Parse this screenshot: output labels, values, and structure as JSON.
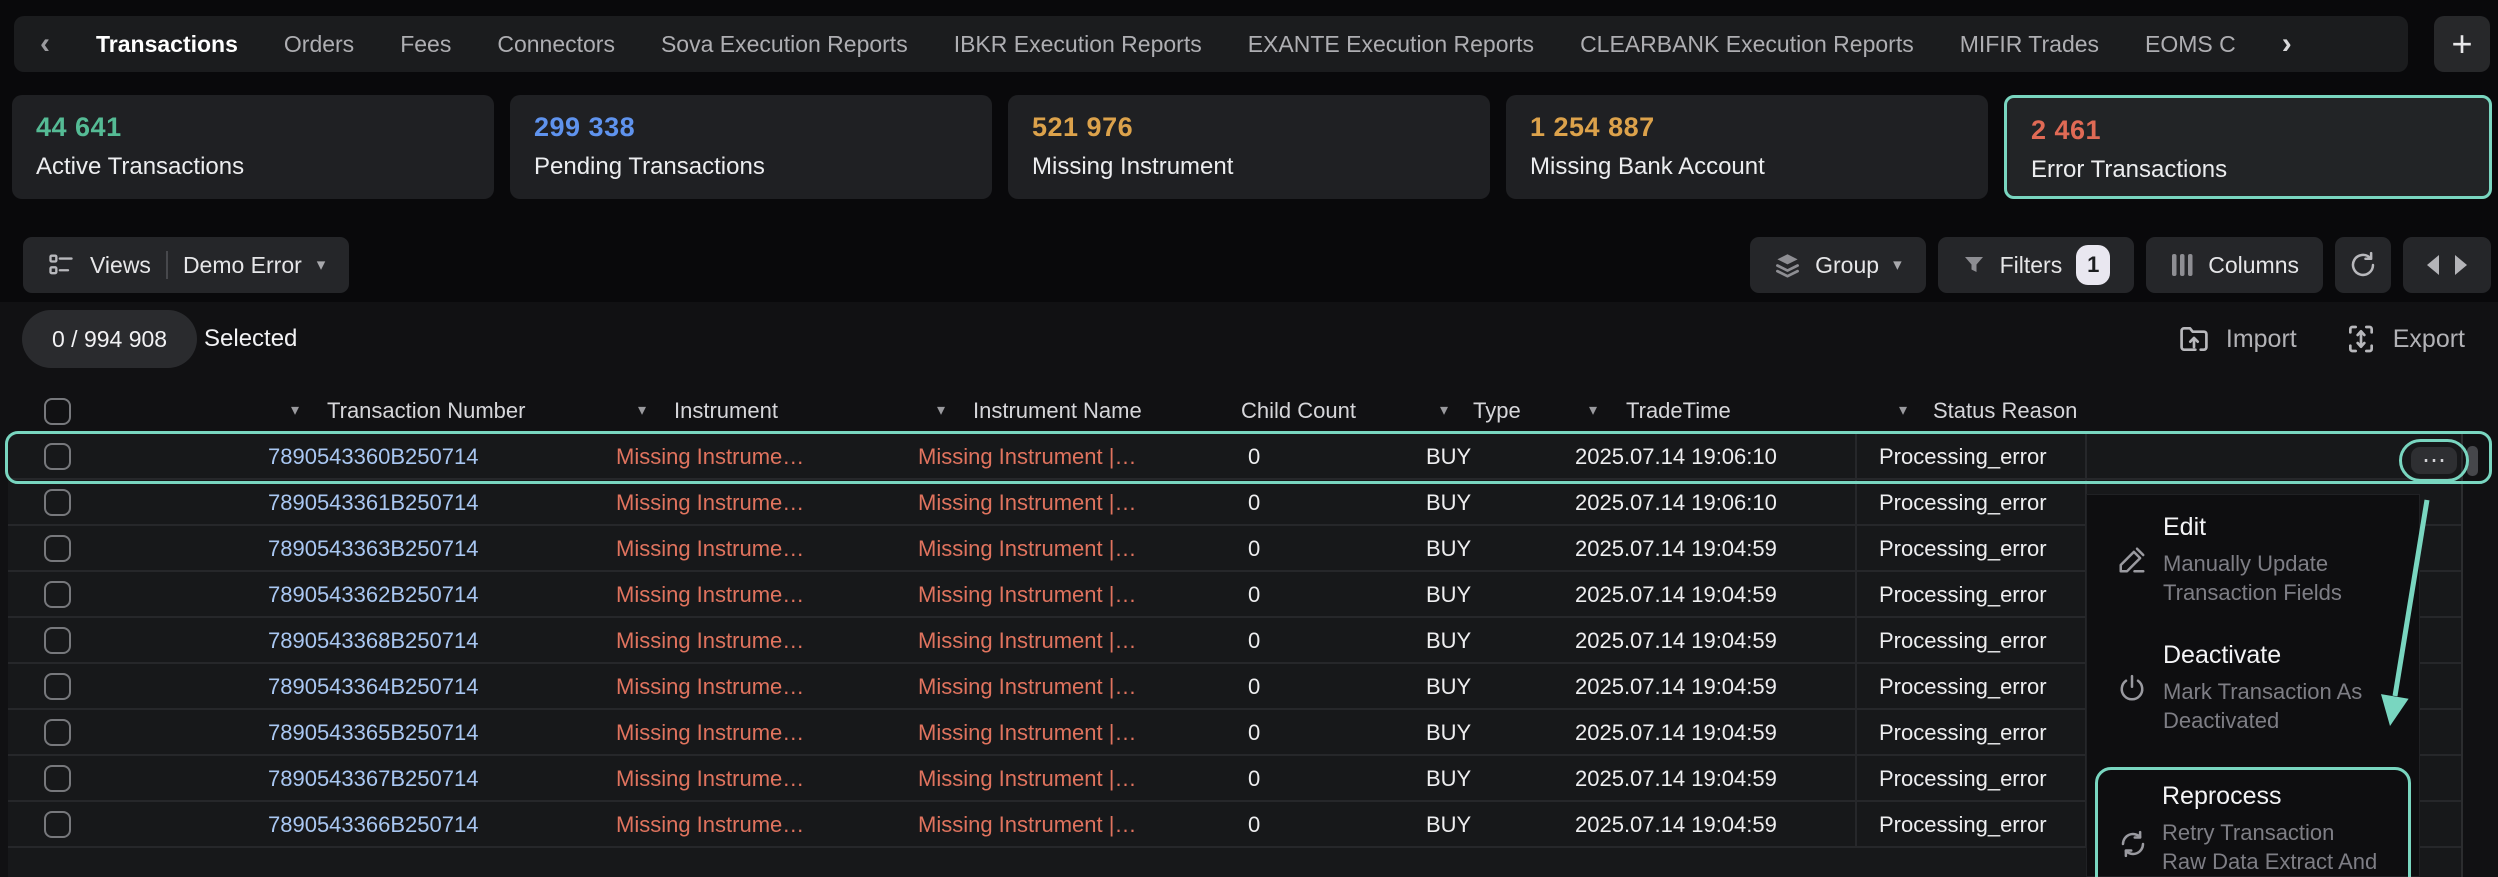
{
  "colors": {
    "accent_teal": "#79d6c0",
    "stat_green": "#55bb95",
    "stat_blue": "#5f93ee",
    "stat_orange": "#dca24b",
    "stat_red": "#e06a55",
    "link_blue": "#a9c7f2",
    "error_salmon": "#e0735e"
  },
  "icons": {
    "caret_down": "▾",
    "dots": "⋯",
    "plus": "+"
  },
  "nav": {
    "back_chevron": "‹",
    "overflow_chevron": "›",
    "tabs": [
      {
        "label": "Transactions",
        "active": true
      },
      {
        "label": "Orders",
        "active": false
      },
      {
        "label": "Fees",
        "active": false
      },
      {
        "label": "Connectors",
        "active": false
      },
      {
        "label": "Sova Execution Reports",
        "active": false
      },
      {
        "label": "IBKR Execution Reports",
        "active": false
      },
      {
        "label": "EXANTE Execution Reports",
        "active": false
      },
      {
        "label": "CLEARBANK Execution Reports",
        "active": false
      },
      {
        "label": "MIFIR Trades",
        "active": false
      },
      {
        "label": "EOMS C",
        "active": false
      }
    ]
  },
  "stat_cards": [
    {
      "value": "44 641",
      "label": "Active Transactions",
      "color": "#55bb95",
      "selected": false
    },
    {
      "value": "299 338",
      "label": "Pending Transactions",
      "color": "#5f93ee",
      "selected": false
    },
    {
      "value": "521 976",
      "label": "Missing Instrument",
      "color": "#dca24b",
      "selected": false
    },
    {
      "value": "1 254 887",
      "label": "Missing Bank Account",
      "color": "#dca24b",
      "selected": false
    },
    {
      "value": "2 461",
      "label": "Error Transactions",
      "color": "#e06a55",
      "selected": true
    }
  ],
  "toolbar": {
    "views_label": "Views",
    "view_name": "Demo Error",
    "group_label": "Group",
    "filters_label": "Filters",
    "filters_badge": "1",
    "columns_label": "Columns"
  },
  "selection_bar": {
    "count": "0 / 994 908",
    "selected_label": "Selected",
    "import_label": "Import",
    "export_label": "Export"
  },
  "table": {
    "columns": [
      "Transaction Number",
      "Instrument",
      "Instrument Name",
      "Child Count",
      "Type",
      "TradeTime",
      "Status Reason"
    ],
    "rows": [
      {
        "transaction_number": "7890543360B250714",
        "instrument": "Missing Instrume…",
        "instrument_name": "Missing Instrument |…",
        "child_count": "0",
        "type": "BUY",
        "trade_time": "2025.07.14 19:06:10",
        "status_reason": "Processing_error",
        "selected_highlight": true
      },
      {
        "transaction_number": "7890543361B250714",
        "instrument": "Missing Instrume…",
        "instrument_name": "Missing Instrument |…",
        "child_count": "0",
        "type": "BUY",
        "trade_time": "2025.07.14 19:06:10",
        "status_reason": "Processing_error",
        "selected_highlight": false
      },
      {
        "transaction_number": "7890543363B250714",
        "instrument": "Missing Instrume…",
        "instrument_name": "Missing Instrument |…",
        "child_count": "0",
        "type": "BUY",
        "trade_time": "2025.07.14 19:04:59",
        "status_reason": "Processing_error",
        "selected_highlight": false
      },
      {
        "transaction_number": "7890543362B250714",
        "instrument": "Missing Instrume…",
        "instrument_name": "Missing Instrument |…",
        "child_count": "0",
        "type": "BUY",
        "trade_time": "2025.07.14 19:04:59",
        "status_reason": "Processing_error",
        "selected_highlight": false
      },
      {
        "transaction_number": "7890543368B250714",
        "instrument": "Missing Instrume…",
        "instrument_name": "Missing Instrument |…",
        "child_count": "0",
        "type": "BUY",
        "trade_time": "2025.07.14 19:04:59",
        "status_reason": "Processing_error",
        "selected_highlight": false
      },
      {
        "transaction_number": "7890543364B250714",
        "instrument": "Missing Instrume…",
        "instrument_name": "Missing Instrument |…",
        "child_count": "0",
        "type": "BUY",
        "trade_time": "2025.07.14 19:04:59",
        "status_reason": "Processing_error",
        "selected_highlight": false
      },
      {
        "transaction_number": "7890543365B250714",
        "instrument": "Missing Instrume…",
        "instrument_name": "Missing Instrument |…",
        "child_count": "0",
        "type": "BUY",
        "trade_time": "2025.07.14 19:04:59",
        "status_reason": "Processing_error",
        "selected_highlight": false
      },
      {
        "transaction_number": "7890543367B250714",
        "instrument": "Missing Instrume…",
        "instrument_name": "Missing Instrument |…",
        "child_count": "0",
        "type": "BUY",
        "trade_time": "2025.07.14 19:04:59",
        "status_reason": "Processing_error",
        "selected_highlight": false
      },
      {
        "transaction_number": "7890543366B250714",
        "instrument": "Missing Instrume…",
        "instrument_name": "Missing Instrument |…",
        "child_count": "0",
        "type": "BUY",
        "trade_time": "2025.07.14 19:04:59",
        "status_reason": "Processing_error",
        "selected_highlight": false
      }
    ]
  },
  "context_menu": {
    "items": [
      {
        "title": "Edit",
        "subtitle": "Manually Update Transaction Fields",
        "icon": "pen-icon",
        "highlighted": false
      },
      {
        "title": "Deactivate",
        "subtitle": "Mark Transaction As Deactivated",
        "icon": "power-icon",
        "highlighted": false
      },
      {
        "title": "Reprocess",
        "subtitle": "Retry Transaction Raw Data Extract And Processing",
        "icon": "reprocess-icon",
        "highlighted": true
      }
    ]
  }
}
